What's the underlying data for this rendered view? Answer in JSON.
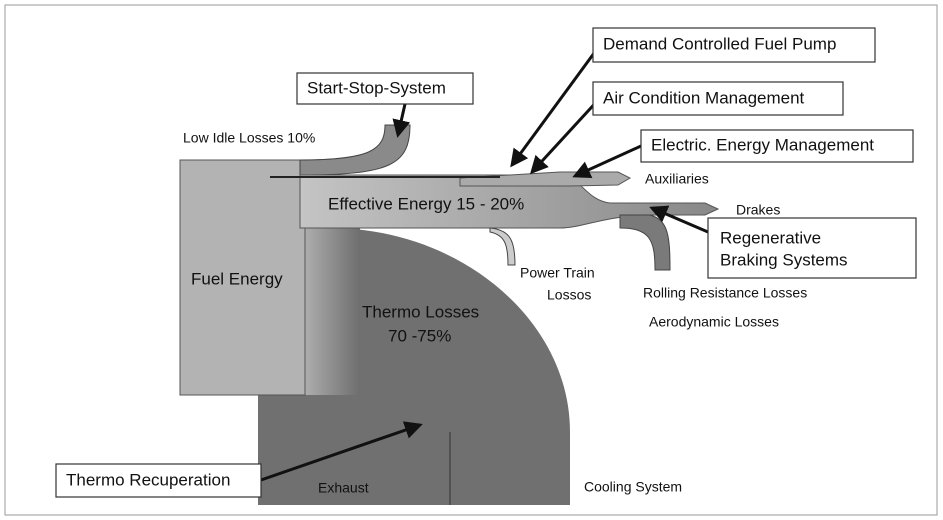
{
  "boxes": {
    "fuel_pump": "Demand Controlled Fuel Pump",
    "air_condition": "Air Condition Management",
    "electric": "Electric. Energy Management",
    "start_stop": "Start-Stop-System",
    "regenerative": [
      "Regenerative",
      "Braking Systems"
    ],
    "thermo_recuperation": "Thermo Recuperation"
  },
  "labels": {
    "low_idle": "Low Idle Losses 10%",
    "auxiliaries": "Auxiliaries",
    "effective": "Effective Energy 15 - 20%",
    "brakes": "Drakes",
    "fuel": "Fuel Energy",
    "power_train": [
      "Power Train",
      "Lossos"
    ],
    "rolling": "Rolling Resistance Losses",
    "aero": "Aerodynamic Losses",
    "thermo": [
      "Thermo Losses",
      "70 -75%"
    ],
    "exhaust": "Exhaust",
    "cooling": "Cooling System"
  }
}
